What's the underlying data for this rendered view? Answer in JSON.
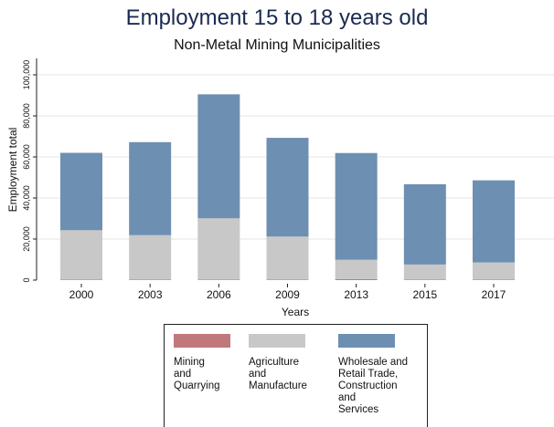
{
  "chart_data": {
    "type": "bar",
    "stacked": true,
    "title": "Employment 15 to 18 years old",
    "subtitle": "Non-Metal Mining Municipalities",
    "xlabel": "Years",
    "ylabel": "Employment total",
    "categories": [
      "2000",
      "2003",
      "2006",
      "2009",
      "2013",
      "2015",
      "2017"
    ],
    "ylim": [
      0,
      100000
    ],
    "yticks": [
      0,
      20000,
      40000,
      60000,
      80000,
      100000
    ],
    "ytick_labels": [
      "0",
      "20,000",
      "40,000",
      "60,000",
      "80,000",
      "100,000"
    ],
    "series": [
      {
        "name": "Mining\nand\nQuarrying",
        "color": "#c0787d",
        "values": [
          300,
          300,
          300,
          300,
          500,
          300,
          300
        ]
      },
      {
        "name": "Agriculture\nand\nManufacture",
        "color": "#c8c8c8",
        "values": [
          24000,
          21600,
          29800,
          20900,
          9400,
          7300,
          8300
        ]
      },
      {
        "name": "Wholesale and\nRetail Trade,\nConstruction\nand\nServices",
        "color": "#6d8fb1",
        "values": [
          37700,
          45300,
          60400,
          48100,
          52000,
          39100,
          40000
        ]
      }
    ],
    "grid": true,
    "legend_position": "bottom"
  }
}
